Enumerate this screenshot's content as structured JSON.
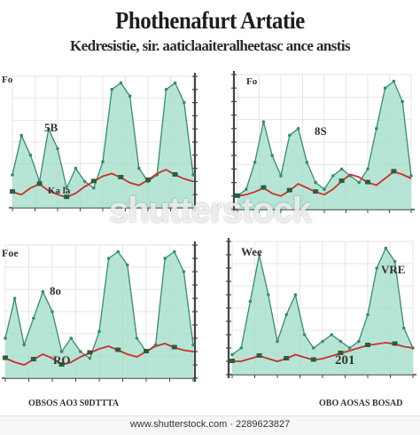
{
  "header": {
    "title": "Phothenafurt Artatie",
    "subtitle": "Kedresistie, sir. aaticlaaiteralheetasc ance anstis"
  },
  "chart_data": [
    {
      "type": "line",
      "title": "",
      "x": [
        0,
        1,
        2,
        3,
        4,
        5,
        6,
        7,
        8,
        9,
        10,
        11,
        12,
        13,
        14,
        15,
        16,
        17,
        18,
        19,
        20
      ],
      "series": [
        {
          "values": [
            2.5,
            5.5,
            4.0,
            2.0,
            6.0,
            4.5,
            1.5,
            3.0,
            2.0,
            1.5,
            3.5,
            9.0,
            9.5,
            8.5,
            3.0,
            2.0,
            2.5,
            9.0,
            9.5,
            8.0,
            2.5
          ]
        },
        {
          "values": [
            1.2,
            1.0,
            1.5,
            1.8,
            1.3,
            1.0,
            0.8,
            1.1,
            1.6,
            2.0,
            2.4,
            2.6,
            2.3,
            1.9,
            1.7,
            2.1,
            2.6,
            2.9,
            2.5,
            2.2,
            2.0
          ]
        }
      ],
      "labels": [
        "Fo",
        "5B",
        "Ka la"
      ]
    },
    {
      "type": "line",
      "title": "",
      "x": [
        0,
        1,
        2,
        3,
        4,
        5,
        6,
        7,
        8,
        9,
        10,
        11,
        12,
        13,
        14,
        15,
        16,
        17,
        18,
        19,
        20
      ],
      "series": [
        {
          "values": [
            1.0,
            1.5,
            3.5,
            6.5,
            4.0,
            2.5,
            5.5,
            6.0,
            3.5,
            2.0,
            1.5,
            2.5,
            3.0,
            2.5,
            2.0,
            3.0,
            6.0,
            9.0,
            9.5,
            8.0,
            2.5
          ]
        },
        {
          "values": [
            1.0,
            1.1,
            1.3,
            1.6,
            1.2,
            1.0,
            1.4,
            1.9,
            1.6,
            1.3,
            1.1,
            1.5,
            2.1,
            2.6,
            2.4,
            2.0,
            1.8,
            2.3,
            2.8,
            2.6,
            2.3
          ]
        }
      ],
      "labels": [
        "Fo",
        "8S"
      ]
    },
    {
      "type": "line",
      "title": "",
      "x": [
        0,
        1,
        2,
        3,
        4,
        5,
        6,
        7,
        8,
        9,
        10,
        11,
        12,
        13,
        14,
        15,
        16,
        17,
        18,
        19,
        20
      ],
      "series": [
        {
          "values": [
            3.0,
            6.0,
            2.5,
            4.5,
            6.5,
            5.0,
            2.0,
            3.0,
            2.0,
            1.5,
            3.5,
            9.0,
            9.5,
            8.5,
            3.0,
            2.0,
            2.5,
            9.0,
            9.5,
            8.0,
            2.5
          ]
        },
        {
          "values": [
            1.5,
            1.2,
            1.0,
            1.4,
            1.8,
            1.5,
            1.0,
            1.2,
            1.6,
            1.9,
            2.2,
            2.4,
            2.1,
            1.8,
            1.6,
            2.0,
            2.4,
            2.6,
            2.3,
            2.1,
            2.0
          ]
        }
      ],
      "labels": [
        "Foe",
        "8o",
        "RO"
      ]
    },
    {
      "type": "line",
      "title": "",
      "x": [
        0,
        1,
        2,
        3,
        4,
        5,
        6,
        7,
        8,
        9,
        10,
        11,
        12,
        13,
        14,
        15,
        16,
        17,
        18,
        19,
        20
      ],
      "series": [
        {
          "values": [
            1.5,
            2.0,
            5.5,
            9.0,
            6.0,
            2.5,
            4.5,
            6.0,
            3.0,
            2.0,
            2.5,
            3.0,
            2.5,
            2.0,
            2.5,
            4.5,
            8.0,
            9.5,
            8.5,
            3.5,
            2.0
          ]
        },
        {
          "values": [
            1.0,
            1.0,
            1.2,
            1.4,
            1.2,
            1.0,
            1.2,
            1.5,
            1.3,
            1.1,
            1.2,
            1.4,
            1.6,
            1.8,
            2.0,
            2.2,
            2.3,
            2.4,
            2.3,
            2.1,
            2.0
          ]
        }
      ],
      "labels": [
        "Wee",
        "VRE",
        "201"
      ]
    }
  ],
  "footer_captions": {
    "left": "OBSOS AO3 S0DTTTA",
    "right": "OBO AOSAS BOSAD"
  },
  "watermark": "shutterstock",
  "footer": {
    "text": "www.shutterstock.com · 2289623827"
  },
  "colors": {
    "fill": "#9fdcc7",
    "stroke": "#3a8a6e",
    "red": "#c8322a",
    "grid": "#dcdcdc",
    "axis": "#444444"
  }
}
